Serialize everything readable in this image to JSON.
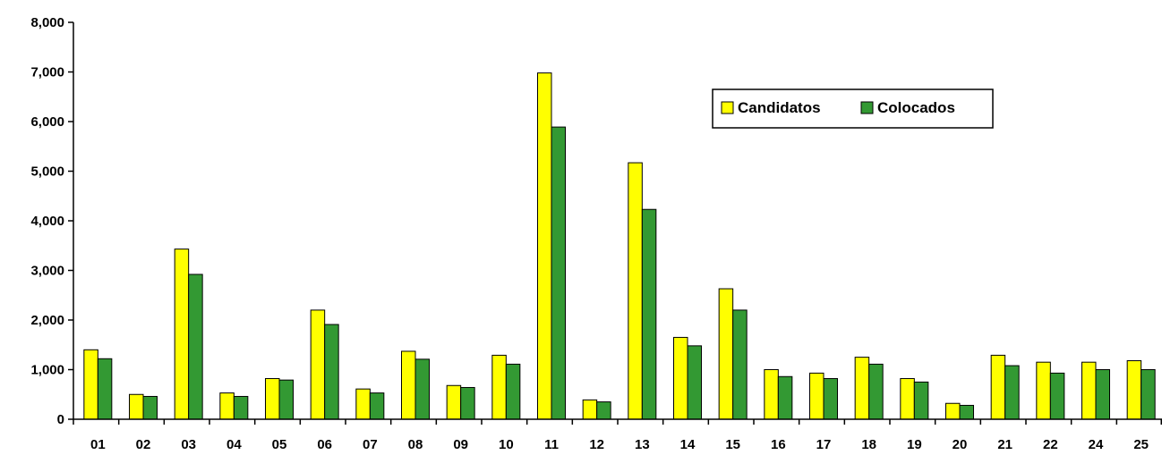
{
  "chart_data": {
    "type": "bar",
    "categories": [
      "01",
      "02",
      "03",
      "04",
      "05",
      "06",
      "07",
      "08",
      "09",
      "10",
      "11",
      "12",
      "13",
      "14",
      "15",
      "16",
      "17",
      "18",
      "19",
      "20",
      "21",
      "22",
      "24",
      "25"
    ],
    "series": [
      {
        "name": "Candidatos",
        "color": "#ffff00",
        "values": [
          1400,
          500,
          3430,
          530,
          820,
          2200,
          610,
          1370,
          680,
          1290,
          6980,
          390,
          5170,
          1650,
          2630,
          1000,
          930,
          1250,
          820,
          320,
          1290,
          1150,
          1150,
          1180
        ]
      },
      {
        "name": "Colocados",
        "color": "#339933",
        "values": [
          1220,
          460,
          2920,
          460,
          790,
          1910,
          530,
          1210,
          640,
          1110,
          5890,
          350,
          4230,
          1480,
          2200,
          860,
          820,
          1110,
          750,
          280,
          1080,
          930,
          1000,
          1000
        ]
      }
    ],
    "y_ticks": [
      "0",
      "1,000",
      "2,000",
      "3,000",
      "4,000",
      "5,000",
      "6,000",
      "7,000",
      "8,000"
    ],
    "ylim": [
      0,
      8000
    ],
    "grid": false,
    "legend_position": "top-right"
  }
}
